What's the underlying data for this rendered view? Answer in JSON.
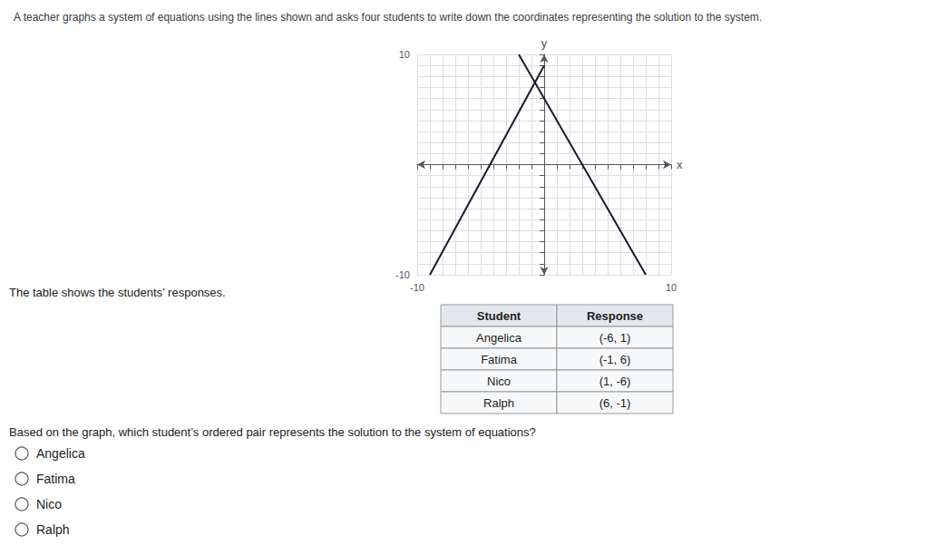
{
  "chart_data": {
    "type": "line",
    "title": "A teacher graphs a system of equations using the lines shown and asks four students to write down the coordinates representing the solution to the system.",
    "subtitle": "The table shows the students’ responses.",
    "xlabel": "x",
    "ylabel": "y",
    "series": [
      {
        "color": "#1a1a2e",
        "x": [
          -9,
          0
        ],
        "values": [
          -10,
          9
        ]
      },
      {
        "color": "#1a1a2e",
        "x": [
          -2,
          8
        ],
        "values": [
          10,
          -10
        ]
      }
    ],
    "xlim": [
      -10,
      10
    ],
    "ylim": [
      -10,
      10
    ],
    "xticks": [
      -10,
      {
        "value": -9,
        "label": null
      },
      {
        "value": -8,
        "label": null
      },
      {
        "value": -7,
        "label": null
      },
      {
        "value": -6,
        "label": null
      },
      {
        "value": -5,
        "label": null
      },
      {
        "value": -4,
        "label": null
      },
      {
        "value": -3,
        "label": null
      },
      {
        "value": -2,
        "label": null
      },
      {
        "value": -1,
        "label": null
      },
      {
        "value": 0,
        "label": null
      },
      {
        "value": 1,
        "label": null
      },
      {
        "value": 2,
        "label": null
      },
      {
        "value": 3,
        "label": null
      },
      {
        "value": 4,
        "label": null
      },
      {
        "value": 5,
        "label": null
      },
      {
        "value": 6,
        "label": null
      },
      {
        "value": 7,
        "label": null
      },
      {
        "value": 8,
        "label": null
      },
      {
        "value": 9,
        "label": null
      },
      10
    ],
    "yticks": [
      -10,
      {
        "value": -9,
        "label": null
      },
      {
        "value": -8,
        "label": null
      },
      {
        "value": -7,
        "label": null
      },
      {
        "value": -6,
        "label": null
      },
      {
        "value": -5,
        "label": null
      },
      {
        "value": -4,
        "label": null
      },
      {
        "value": -3,
        "label": null
      },
      {
        "value": -2,
        "label": null
      },
      {
        "value": -1,
        "label": null
      },
      {
        "value": 0,
        "label": null
      },
      {
        "value": 1,
        "label": null
      },
      {
        "value": 2,
        "label": null
      },
      {
        "value": 3,
        "label": null
      },
      {
        "value": 4,
        "label": null
      },
      {
        "value": 5,
        "label": null
      },
      {
        "value": 6,
        "label": null
      },
      {
        "value": 7,
        "label": null
      },
      {
        "value": 8,
        "label": null
      },
      {
        "value": 9,
        "label": null
      },
      10
    ],
    "grid": true,
    "table": {
      "header": [
        "Student",
        "Response"
      ],
      "rows": [
        [
          "Angelica",
          "(-6, 1)"
        ],
        [
          "Fatima",
          "(-1, 6)"
        ],
        [
          "Nico",
          "(1, -6)"
        ],
        [
          "Ralph",
          "(6, -1)"
        ]
      ]
    },
    "question": "Based on the graph, which student’s ordered pair represents the solution to the system of equations?",
    "choices": [
      "Angelica",
      "Fatima",
      "Nico",
      "Ralph"
    ]
  }
}
